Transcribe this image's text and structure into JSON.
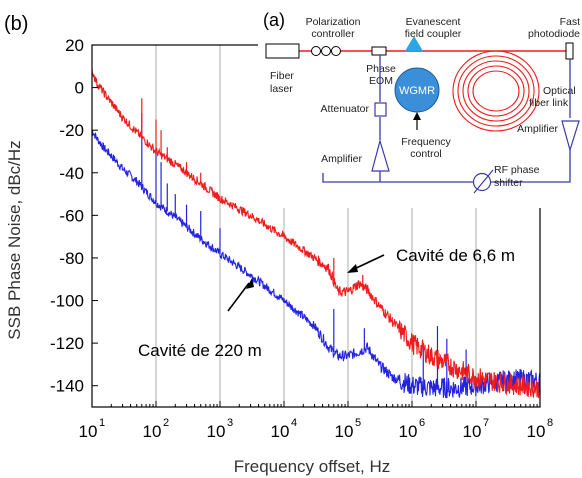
{
  "panel_b_label": "(b)",
  "panel_a_label": "(a)",
  "chart_data": {
    "type": "line",
    "xlabel": "Frequency offset, Hz",
    "ylabel": "SSB Phase Noise, dBc/Hz",
    "x_scale": "log",
    "xlim": [
      10,
      100000000
    ],
    "ylim": [
      -150,
      20
    ],
    "x_ticks": [
      {
        "value": 10,
        "base": "10",
        "exp": "1"
      },
      {
        "value": 100,
        "base": "10",
        "exp": "2"
      },
      {
        "value": 1000,
        "base": "10",
        "exp": "3"
      },
      {
        "value": 10000,
        "base": "10",
        "exp": "4"
      },
      {
        "value": 100000,
        "base": "10",
        "exp": "5"
      },
      {
        "value": 1000000,
        "base": "10",
        "exp": "6"
      },
      {
        "value": 10000000,
        "base": "10",
        "exp": "7"
      },
      {
        "value": 100000000,
        "base": "10",
        "exp": "8"
      }
    ],
    "y_ticks": [
      "20",
      "0",
      "-20",
      "-40",
      "-60",
      "-80",
      "-100",
      "-120",
      "-140"
    ],
    "grid": true,
    "series": [
      {
        "name": "Cavité de 6,6 m",
        "color": "#ee1c1c",
        "x": [
          10,
          12,
          15,
          20,
          30,
          50,
          100,
          200,
          500,
          1000,
          3000,
          10000,
          30000,
          50000,
          70000,
          100000,
          150000,
          200000,
          300000,
          500000,
          1000000,
          2000000,
          5000000,
          10000000,
          20000000,
          50000000,
          100000000
        ],
        "values": [
          8,
          2,
          -2,
          -7,
          -14,
          -21,
          -30,
          -36,
          -45,
          -52,
          -60,
          -70,
          -80,
          -85,
          -96,
          -96,
          -92,
          -95,
          -102,
          -110,
          -120,
          -126,
          -132,
          -136,
          -138,
          -140,
          -141
        ],
        "spurs": [
          {
            "x": 60,
            "y": -5
          },
          {
            "x": 100,
            "y": -15
          },
          {
            "x": 120,
            "y": -20
          },
          {
            "x": 150,
            "y": -28
          },
          {
            "x": 300,
            "y": -35
          },
          {
            "x": 500,
            "y": -40
          },
          {
            "x": 60000,
            "y": -80
          },
          {
            "x": 170000,
            "y": -88
          }
        ]
      },
      {
        "name": "Cavité de 220 m",
        "color": "#2424e0",
        "x": [
          10,
          12,
          15,
          20,
          30,
          50,
          100,
          200,
          500,
          1000,
          3000,
          10000,
          30000,
          50000,
          70000,
          100000,
          150000,
          200000,
          300000,
          500000,
          1000000,
          2000000,
          5000000,
          10000000,
          20000000,
          50000000,
          100000000
        ],
        "values": [
          -20,
          -24,
          -28,
          -32,
          -38,
          -44,
          -54,
          -61,
          -71,
          -78,
          -88,
          -100,
          -112,
          -122,
          -126,
          -126,
          -124,
          -122,
          -130,
          -136,
          -140,
          -141,
          -141,
          -140,
          -138,
          -137,
          -138
        ],
        "spurs": [
          {
            "x": 60,
            "y": -12
          },
          {
            "x": 100,
            "y": -28
          },
          {
            "x": 120,
            "y": -35
          },
          {
            "x": 150,
            "y": -45
          },
          {
            "x": 200,
            "y": -50
          },
          {
            "x": 300,
            "y": -55
          },
          {
            "x": 500,
            "y": -58
          },
          {
            "x": 1000,
            "y": -66
          },
          {
            "x": 60000,
            "y": -104
          },
          {
            "x": 180000,
            "y": -113
          },
          {
            "x": 1500000,
            "y": -120
          },
          {
            "x": 2500000,
            "y": -112
          },
          {
            "x": 3500000,
            "y": -118
          },
          {
            "x": 7000000,
            "y": -123
          }
        ]
      }
    ],
    "annotations": [
      {
        "text": "Cavité de 6,6 m",
        "target": [
          80000,
          -88
        ]
      },
      {
        "text": "Cavité de 220 m",
        "target": [
          4000,
          -85
        ]
      }
    ]
  },
  "schematic": {
    "polarization": [
      "Polarization",
      "controller"
    ],
    "evanescent": [
      "Evanescent",
      "field coupler"
    ],
    "fast_pd": [
      "Fast",
      "photodiode"
    ],
    "fiber_laser": [
      "Fiber",
      "laser"
    ],
    "phase_eom": [
      "Phase",
      "EOM"
    ],
    "wgmr": "WGMR",
    "attenuator": "Attenuator",
    "optical_link": [
      "Optical",
      "fiber link"
    ],
    "frequency_control": [
      "Frequency",
      "control"
    ],
    "amplifier_left": "Amplifier",
    "amplifier_right": "Amplifier",
    "rf_shifter": [
      "RF phase",
      "shifter"
    ]
  },
  "colors": {
    "optical": "#ee1c1c",
    "electrical": "#3a3aa6",
    "wgmr": "#3a8fd8",
    "coupler": "#2ea6e6",
    "grid": "#9a9a9a"
  }
}
